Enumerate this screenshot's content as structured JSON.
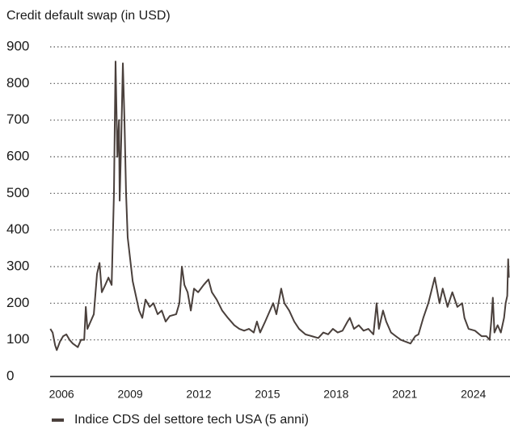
{
  "chart_data": {
    "type": "line",
    "subtitle": "Credit default swap (in USD)",
    "x": [
      2005.51,
      2005.61,
      2005.72,
      2005.79,
      2005.93,
      2006.07,
      2006.21,
      2006.35,
      2006.49,
      2006.6,
      2006.71,
      2006.85,
      2006.99,
      2007.06,
      2007.13,
      2007.27,
      2007.41,
      2007.55,
      2007.66,
      2007.76,
      2007.91,
      2008.05,
      2008.19,
      2008.29,
      2008.36,
      2008.44,
      2008.51,
      2008.54,
      2008.61,
      2008.68,
      2008.75,
      2008.82,
      2008.89,
      2009.0,
      2009.11,
      2009.25,
      2009.39,
      2009.53,
      2009.67,
      2009.85,
      2010.02,
      2010.2,
      2010.38,
      2010.55,
      2010.73,
      2011.01,
      2011.15,
      2011.26,
      2011.37,
      2011.51,
      2011.65,
      2011.79,
      2011.97,
      2012.21,
      2012.42,
      2012.57,
      2012.78,
      2013.02,
      2013.27,
      2013.55,
      2013.77,
      2013.98,
      2014.19,
      2014.4,
      2014.54,
      2014.68,
      2014.9,
      2015.11,
      2015.25,
      2015.39,
      2015.6,
      2015.74,
      2015.95,
      2016.17,
      2016.38,
      2016.66,
      2016.94,
      2017.22,
      2017.44,
      2017.65,
      2017.86,
      2018.07,
      2018.28,
      2018.5,
      2018.6,
      2018.78,
      2018.99,
      2019.2,
      2019.41,
      2019.63,
      2019.77,
      2019.87,
      2020.05,
      2020.19,
      2020.4,
      2020.61,
      2020.83,
      2021.04,
      2021.25,
      2021.46,
      2021.6,
      2021.81,
      2022.03,
      2022.31,
      2022.52,
      2022.66,
      2022.87,
      2023.08,
      2023.3,
      2023.51,
      2023.61,
      2023.79,
      2024.07,
      2024.36,
      2024.57,
      2024.71,
      2024.78,
      2024.85,
      2024.92,
      2025.06,
      2025.2,
      2025.34,
      2025.41,
      2025.48,
      2025.52,
      2025.55
    ],
    "series": [
      {
        "name": "Indice CDS del settore tech USA (5 anni)",
        "color": "#4a403c",
        "values": [
          130,
          120,
          85,
          72,
          95,
          110,
          115,
          100,
          90,
          85,
          80,
          100,
          100,
          190,
          130,
          150,
          170,
          280,
          310,
          230,
          250,
          270,
          250,
          500,
          860,
          600,
          700,
          480,
          650,
          855,
          700,
          500,
          380,
          320,
          260,
          220,
          180,
          160,
          210,
          190,
          200,
          170,
          180,
          150,
          165,
          170,
          200,
          300,
          250,
          230,
          180,
          240,
          230,
          250,
          265,
          230,
          210,
          180,
          160,
          140,
          130,
          125,
          130,
          120,
          150,
          120,
          150,
          180,
          200,
          170,
          240,
          200,
          180,
          150,
          130,
          115,
          110,
          105,
          120,
          115,
          130,
          120,
          125,
          150,
          160,
          130,
          140,
          125,
          130,
          115,
          200,
          130,
          180,
          150,
          120,
          110,
          100,
          95,
          90,
          110,
          115,
          160,
          200,
          270,
          200,
          240,
          190,
          230,
          190,
          200,
          160,
          130,
          125,
          110,
          110,
          100,
          150,
          215,
          120,
          140,
          120,
          160,
          200,
          220,
          320,
          270
        ]
      }
    ],
    "xlim": [
      2005.5,
      2025.6
    ],
    "xticks": [
      2006,
      2009,
      2012,
      2015,
      2018,
      2021,
      2024
    ],
    "ylim": [
      0,
      900
    ],
    "yticks": [
      0,
      100,
      200,
      300,
      400,
      500,
      600,
      700,
      800,
      900
    ],
    "grid": true,
    "legend": "bottom"
  }
}
